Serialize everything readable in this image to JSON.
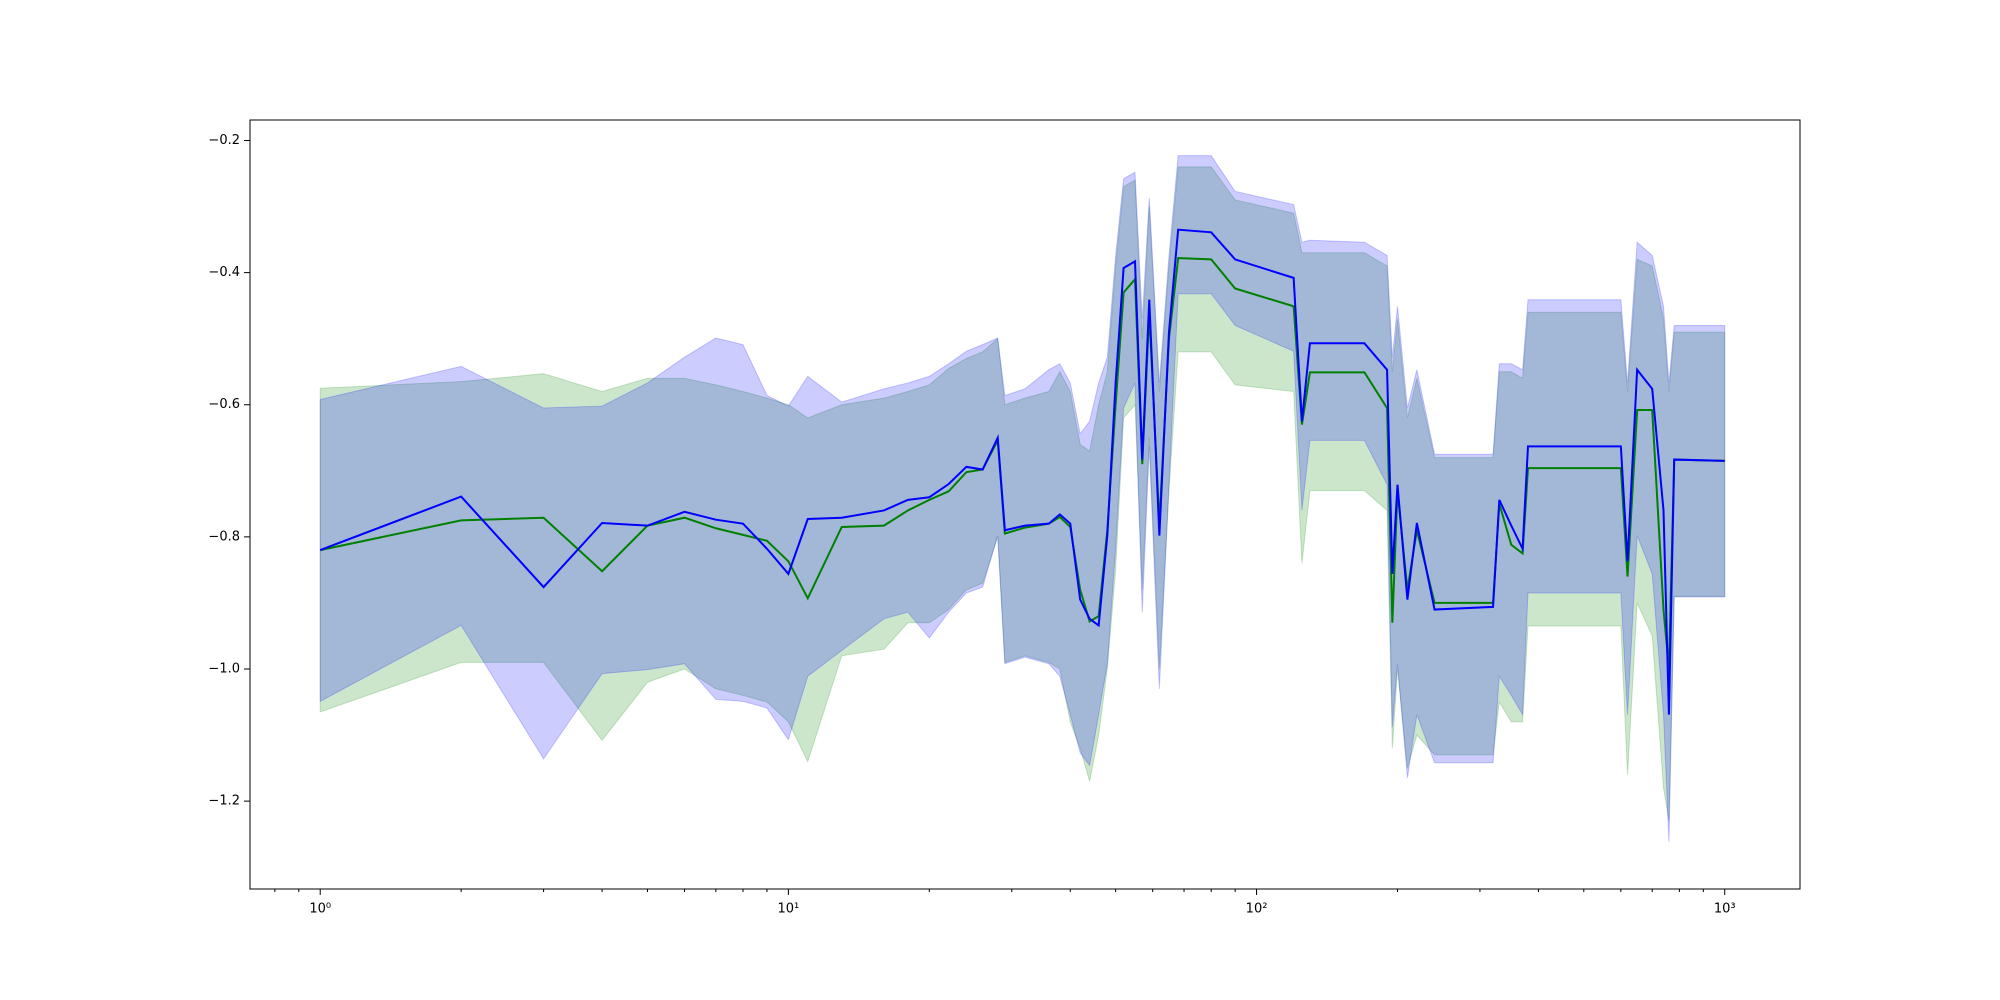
{
  "chart_data": {
    "type": "line",
    "xscale": "log",
    "x": [
      1,
      2,
      3,
      4,
      5,
      6,
      7,
      8,
      9,
      10,
      11,
      13,
      16,
      18,
      20,
      22,
      24,
      26,
      28,
      29,
      32,
      36,
      38,
      40,
      42,
      44,
      46,
      48,
      50,
      52,
      55,
      57,
      59,
      62,
      65,
      68,
      80,
      90,
      120,
      125,
      130,
      170,
      190,
      195,
      200,
      210,
      220,
      240,
      320,
      330,
      350,
      370,
      380,
      600,
      620,
      650,
      700,
      740,
      760,
      780,
      1000
    ],
    "series": [
      {
        "color": "#008000",
        "values": [
          -0.82,
          -0.775,
          -0.771,
          -0.852,
          -0.783,
          -0.771,
          -0.787,
          -0.797,
          -0.806,
          -0.837,
          -0.893,
          -0.785,
          -0.783,
          -0.76,
          -0.744,
          -0.731,
          -0.702,
          -0.698,
          -0.654,
          -0.795,
          -0.786,
          -0.78,
          -0.77,
          -0.785,
          -0.88,
          -0.928,
          -0.92,
          -0.79,
          -0.6,
          -0.43,
          -0.41,
          -0.69,
          -0.46,
          -0.78,
          -0.5,
          -0.378,
          -0.38,
          -0.424,
          -0.451,
          -0.63,
          -0.551,
          -0.551,
          -0.605,
          -0.93,
          -0.73,
          -0.88,
          -0.79,
          -0.9,
          -0.9,
          -0.75,
          -0.812,
          -0.825,
          -0.696,
          -0.696,
          -0.86,
          -0.608,
          -0.608,
          -0.91,
          -1.0,
          -0.683,
          -0.685
        ],
        "upper": [
          -0.575,
          -0.565,
          -0.553,
          -0.58,
          -0.56,
          -0.56,
          -0.57,
          -0.58,
          -0.59,
          -0.6,
          -0.62,
          -0.6,
          -0.59,
          -0.58,
          -0.57,
          -0.545,
          -0.53,
          -0.52,
          -0.5,
          -0.6,
          -0.59,
          -0.58,
          -0.55,
          -0.58,
          -0.66,
          -0.67,
          -0.6,
          -0.55,
          -0.39,
          -0.27,
          -0.26,
          -0.5,
          -0.3,
          -0.58,
          -0.39,
          -0.24,
          -0.24,
          -0.29,
          -0.31,
          -0.37,
          -0.37,
          -0.37,
          -0.39,
          -0.55,
          -0.47,
          -0.62,
          -0.56,
          -0.68,
          -0.68,
          -0.55,
          -0.55,
          -0.56,
          -0.46,
          -0.46,
          -0.58,
          -0.38,
          -0.39,
          -0.47,
          -0.58,
          -0.49,
          -0.49
        ],
        "lower": [
          -1.065,
          -0.99,
          -0.99,
          -1.108,
          -1.02,
          -1.0,
          -1.03,
          -1.04,
          -1.05,
          -1.08,
          -1.14,
          -0.98,
          -0.97,
          -0.93,
          -0.93,
          -0.91,
          -0.88,
          -0.87,
          -0.8,
          -0.99,
          -0.98,
          -0.99,
          -1.0,
          -1.08,
          -1.12,
          -1.17,
          -1.1,
          -1.0,
          -0.85,
          -0.62,
          -0.6,
          -0.88,
          -0.65,
          -1.0,
          -0.73,
          -0.52,
          -0.52,
          -0.57,
          -0.58,
          -0.84,
          -0.73,
          -0.73,
          -0.76,
          -1.12,
          -1.0,
          -1.15,
          -1.1,
          -1.13,
          -1.13,
          -1.05,
          -1.08,
          -1.08,
          -0.935,
          -0.935,
          -1.16,
          -0.9,
          -0.95,
          -1.18,
          -1.23,
          -0.89,
          -0.89
        ]
      },
      {
        "color": "#0000ff",
        "values": [
          -0.82,
          -0.739,
          -0.876,
          -0.779,
          -0.783,
          -0.762,
          -0.774,
          -0.78,
          -0.818,
          -0.856,
          -0.773,
          -0.771,
          -0.76,
          -0.744,
          -0.74,
          -0.72,
          -0.694,
          -0.698,
          -0.65,
          -0.79,
          -0.783,
          -0.78,
          -0.766,
          -0.78,
          -0.895,
          -0.924,
          -0.934,
          -0.798,
          -0.567,
          -0.393,
          -0.383,
          -0.683,
          -0.441,
          -0.798,
          -0.49,
          -0.335,
          -0.339,
          -0.38,
          -0.408,
          -0.625,
          -0.507,
          -0.507,
          -0.547,
          -0.856,
          -0.721,
          -0.895,
          -0.779,
          -0.91,
          -0.906,
          -0.744,
          -0.783,
          -0.818,
          -0.663,
          -0.663,
          -0.837,
          -0.547,
          -0.576,
          -0.76,
          -1.069,
          -0.683,
          -0.685
        ],
        "upper": [
          -0.592,
          -0.542,
          -0.605,
          -0.602,
          -0.567,
          -0.528,
          -0.499,
          -0.509,
          -0.586,
          -0.602,
          -0.557,
          -0.596,
          -0.576,
          -0.567,
          -0.557,
          -0.538,
          -0.519,
          -0.509,
          -0.499,
          -0.586,
          -0.576,
          -0.547,
          -0.538,
          -0.567,
          -0.644,
          -0.625,
          -0.567,
          -0.528,
          -0.374,
          -0.258,
          -0.248,
          -0.47,
          -0.287,
          -0.567,
          -0.374,
          -0.223,
          -0.223,
          -0.277,
          -0.297,
          -0.354,
          -0.351,
          -0.354,
          -0.374,
          -0.528,
          -0.451,
          -0.605,
          -0.547,
          -0.675,
          -0.675,
          -0.538,
          -0.538,
          -0.547,
          -0.441,
          -0.441,
          -0.567,
          -0.354,
          -0.374,
          -0.451,
          -0.567,
          -0.48,
          -0.48
        ],
        "lower": [
          -1.049,
          -0.934,
          -1.136,
          -1.007,
          -1.001,
          -0.992,
          -1.046,
          -1.049,
          -1.059,
          -1.107,
          -1.011,
          -0.972,
          -0.924,
          -0.914,
          -0.953,
          -0.914,
          -0.885,
          -0.876,
          -0.798,
          -0.992,
          -0.982,
          -0.992,
          -1.011,
          -1.069,
          -1.127,
          -1.146,
          -1.069,
          -0.992,
          -0.818,
          -0.605,
          -0.567,
          -0.914,
          -0.663,
          -1.03,
          -0.721,
          -0.432,
          -0.432,
          -0.48,
          -0.519,
          -0.76,
          -0.654,
          -0.654,
          -0.721,
          -1.088,
          -0.992,
          -1.165,
          -1.069,
          -1.142,
          -1.142,
          -1.011,
          -1.04,
          -1.069,
          -0.885,
          -0.885,
          -1.069,
          -0.798,
          -0.856,
          -1.069,
          -1.262,
          -0.891,
          -0.891
        ]
      }
    ],
    "band_opacity": 0.2,
    "xlim": [
      0.708,
      1448
    ],
    "ylim": [
      -1.333,
      -0.169
    ],
    "xticks": [
      {
        "value": 1,
        "label": "10⁰"
      },
      {
        "value": 10,
        "label": "10¹"
      },
      {
        "value": 100,
        "label": "10²"
      },
      {
        "value": 1000,
        "label": "10³"
      }
    ],
    "xminorticks": [
      0.8,
      0.9,
      2,
      3,
      4,
      5,
      6,
      7,
      8,
      9,
      20,
      30,
      40,
      50,
      60,
      70,
      80,
      90,
      200,
      300,
      400,
      500,
      600,
      700,
      800,
      900
    ],
    "yticks": [
      {
        "value": -1.2,
        "label": "−1.2"
      },
      {
        "value": -1.0,
        "label": "−1.0"
      },
      {
        "value": -0.8,
        "label": "−0.8"
      },
      {
        "value": -0.6,
        "label": "−0.6"
      },
      {
        "value": -0.4,
        "label": "−0.4"
      },
      {
        "value": -0.2,
        "label": "−0.2"
      }
    ],
    "grid": false
  }
}
